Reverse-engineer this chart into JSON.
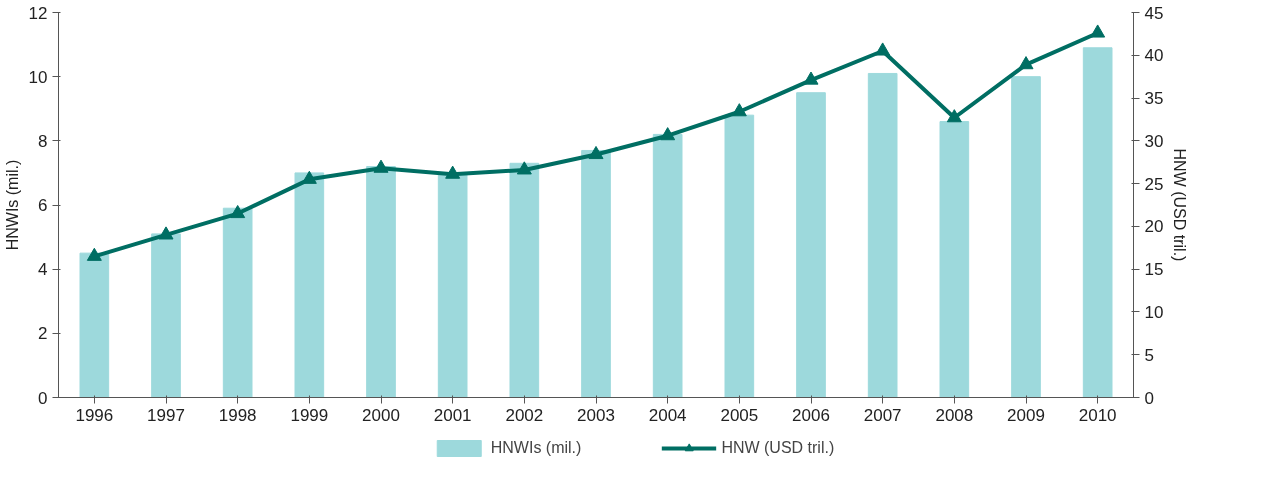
{
  "chart_data": {
    "type": "bar",
    "categories": [
      "1996",
      "1997",
      "1998",
      "1999",
      "2000",
      "2001",
      "2002",
      "2003",
      "2004",
      "2005",
      "2006",
      "2007",
      "2008",
      "2009",
      "2010"
    ],
    "ylabel": "HNWIs (mil.)",
    "y2label": "HNW (USD tril.)",
    "ylim": [
      0,
      12
    ],
    "yticks": [
      0,
      2,
      4,
      6,
      8,
      10,
      12
    ],
    "y2lim": [
      0,
      45
    ],
    "y2ticks": [
      0,
      5,
      10,
      15,
      20,
      25,
      30,
      35,
      40,
      45
    ],
    "grid": false,
    "legend": "bottom",
    "series": [
      {
        "name": "HNWIs (mil.)",
        "color": "#9dd9dc",
        "values": [
          4.5,
          5.1,
          5.9,
          7.0,
          7.2,
          7.0,
          7.3,
          7.7,
          8.2,
          8.8,
          9.5,
          10.1,
          8.6,
          10.0,
          10.9
        ]
      },
      {
        "name": "HNW (USD tril.)",
        "type": "line",
        "axis": "y2",
        "marker": "triangle",
        "color": "#006e63",
        "values": [
          16.5,
          19.0,
          21.5,
          25.5,
          26.8,
          26.1,
          26.6,
          28.4,
          30.6,
          33.4,
          37.1,
          40.5,
          32.7,
          38.9,
          42.6
        ]
      }
    ]
  }
}
